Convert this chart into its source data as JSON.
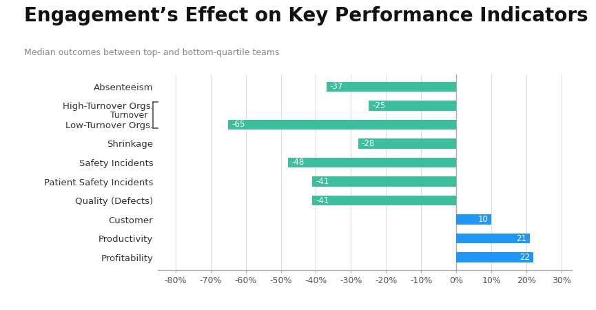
{
  "title": "Engagement’s Effect on Key Performance Indicators",
  "subtitle": "Median outcomes between top- and bottom-quartile teams",
  "categories": [
    "Absenteeism",
    "High-Turnover Orgs.",
    "Low-Turnover Orgs.",
    "Shrinkage",
    "Safety Incidents",
    "Patient Safety Incidents",
    "Quality (Defects)",
    "Customer",
    "Productivity",
    "Profitability"
  ],
  "values": [
    -37,
    -25,
    -65,
    -28,
    -48,
    -41,
    -41,
    10,
    21,
    22
  ],
  "negative_color": "#3dbf9e",
  "positive_color": "#2196f3",
  "background_color": "#ffffff",
  "text_color": "#333333",
  "grid_color": "#dddddd",
  "xlim": [
    -85,
    33
  ],
  "xticks": [
    -80,
    -70,
    -60,
    -50,
    -40,
    -30,
    -20,
    -10,
    0,
    10,
    20,
    30
  ],
  "xtick_labels": [
    "-80%",
    "-70%",
    "-60%",
    "-50%",
    "-40%",
    "-30%",
    "-20%",
    "-10%",
    "0%",
    "10%",
    "20%",
    "30%"
  ],
  "title_fontsize": 20,
  "subtitle_fontsize": 9,
  "label_fontsize": 9.5,
  "tick_fontsize": 9,
  "bar_height": 0.52,
  "turnover_label": "Turnover",
  "turnover_indices": [
    1,
    2
  ]
}
